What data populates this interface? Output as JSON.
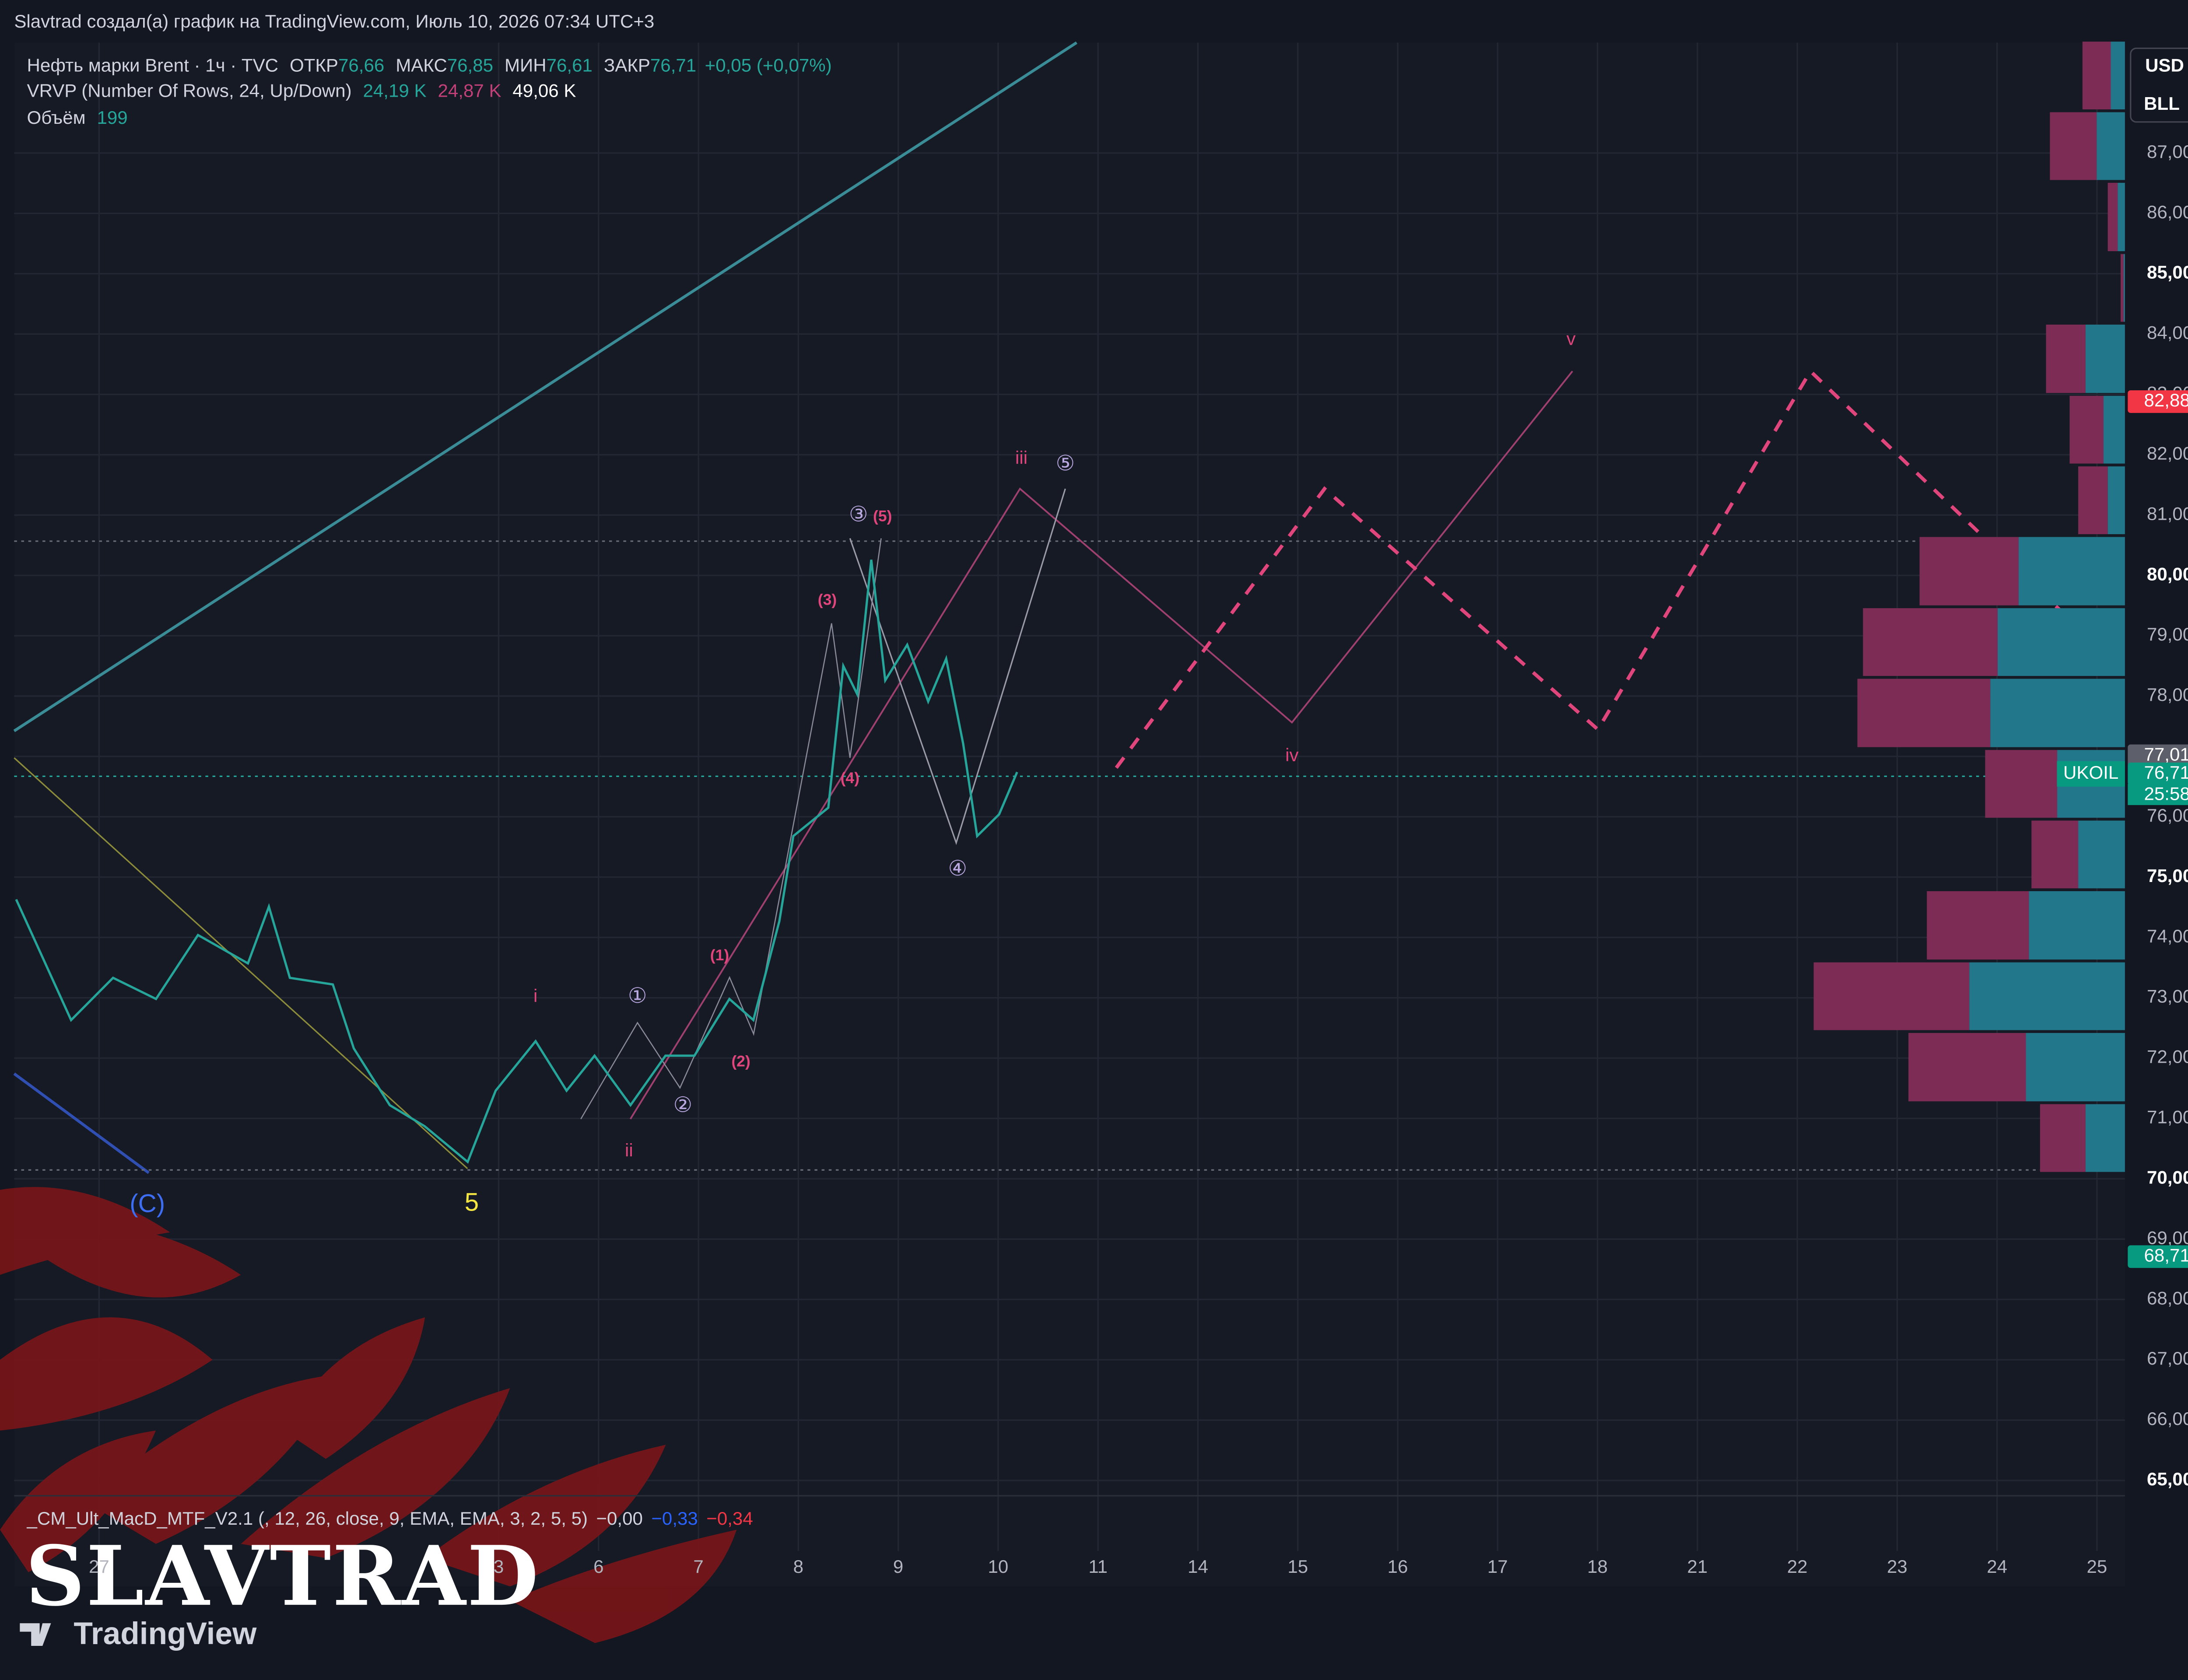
{
  "chart_data": {
    "type": "line",
    "header": "Slavtrad создал(а) график на TradingView.com, Июль 10, 2026 07:34 UTC+3",
    "legend": {
      "symbol": "Нефть марки Brent · 1ч · TVC",
      "open_label": "ОТКР",
      "open": "76,66",
      "high_label": "МАКС",
      "high": "76,85",
      "low_label": "МИН",
      "low": "76,61",
      "close_label": "ЗАКР",
      "close": "76,71",
      "change": "+0,05 (+0,07%)",
      "vrvp": "VRVP (Number Of Rows, 24, Up/Down)",
      "vrvp_up": "24,19 K",
      "vrvp_down": "24,87 K",
      "vrvp_total": "49,06 K",
      "volume_label": "Объём",
      "volume": "199",
      "macd": "_CM_Ult_MacD_MTF_V2.1 (, 12, 26, close, 9, EMA, EMA, 3, 2, 5, 5)",
      "macd_1": "−0,00",
      "macd_2": "−0,33",
      "macd_3": "−0,34"
    },
    "currency": "USD",
    "unit": "BLL",
    "watermark": "SLAVTRAD",
    "brand": "TradingView",
    "x": [
      -0.83,
      -0.28,
      0.14,
      0.57,
      0.99,
      1.49,
      1.7,
      1.91,
      2.34,
      2.55,
      2.91,
      3.26,
      3.69,
      3.97,
      4.37,
      4.68,
      4.96,
      5.32,
      5.67,
      5.96,
      6.31,
      6.55,
      6.81,
      6.95,
      7.3,
      7.45,
      7.59,
      7.73,
      7.87,
      8.09,
      8.3,
      8.48,
      8.65,
      8.79,
      9.01,
      9.19
    ],
    "series": [
      {
        "name": "UKOIL",
        "color": "#26a69a",
        "values": [
          74.63,
          72.63,
          73.33,
          72.98,
          74.04,
          73.57,
          74.51,
          73.33,
          73.22,
          72.16,
          71.22,
          70.87,
          70.28,
          71.46,
          72.28,
          71.46,
          72.04,
          71.22,
          72.04,
          72.04,
          72.98,
          72.63,
          74.27,
          75.68,
          76.15,
          78.5,
          78.03,
          80.26,
          78.26,
          78.85,
          77.91,
          78.62,
          77.21,
          75.68,
          76.04,
          76.74
        ]
      }
    ],
    "xlim": [
      -0.85,
      20.28
    ],
    "xticks": [
      {
        "value": 0,
        "label": "27"
      },
      {
        "value": 4,
        "label": "3"
      },
      {
        "value": 5,
        "label": "6"
      },
      {
        "value": 6,
        "label": "7"
      },
      {
        "value": 7,
        "label": "8"
      },
      {
        "value": 8,
        "label": "9"
      },
      {
        "value": 9,
        "label": "10"
      },
      {
        "value": 10,
        "label": "11"
      },
      {
        "value": 11,
        "label": "14"
      },
      {
        "value": 12,
        "label": "15"
      },
      {
        "value": 13,
        "label": "16"
      },
      {
        "value": 14,
        "label": "17"
      },
      {
        "value": 15,
        "label": "18"
      },
      {
        "value": 16,
        "label": "21"
      },
      {
        "value": 17,
        "label": "22"
      },
      {
        "value": 18,
        "label": "23"
      },
      {
        "value": 19,
        "label": "24"
      },
      {
        "value": 20,
        "label": "25"
      }
    ],
    "ylim": [
      64.77,
      88.83
    ],
    "yticks": [
      {
        "value": 65,
        "label": "65,00"
      },
      {
        "value": 66,
        "label": "66,00"
      },
      {
        "value": 67,
        "label": "67,00"
      },
      {
        "value": 68,
        "label": "68,00"
      },
      {
        "value": 69,
        "label": "69,00"
      },
      {
        "value": 70,
        "label": "70,00"
      },
      {
        "value": 71,
        "label": "71,00"
      },
      {
        "value": 72,
        "label": "72,00"
      },
      {
        "value": 73,
        "label": "73,00"
      },
      {
        "value": 74,
        "label": "74,00"
      },
      {
        "value": 75,
        "label": "75,00"
      },
      {
        "value": 76,
        "label": "76,00"
      },
      {
        "value": 77,
        "label": "77,00"
      },
      {
        "value": 78,
        "label": "78,00"
      },
      {
        "value": 79,
        "label": "79,00"
      },
      {
        "value": 80,
        "label": "80,00"
      },
      {
        "value": 81,
        "label": "81,00"
      },
      {
        "value": 82,
        "label": "82,00"
      },
      {
        "value": 83,
        "label": "83,00"
      },
      {
        "value": 84,
        "label": "84,00"
      },
      {
        "value": 85,
        "label": "85,00"
      },
      {
        "value": 86,
        "label": "86,00"
      },
      {
        "value": 87,
        "label": "87,00"
      }
    ],
    "grid": true,
    "price_tags": [
      {
        "value": 82.88,
        "label": "82,88",
        "color": "#f23645"
      },
      {
        "value": 77.01,
        "label": "77,01",
        "color": "#5d606b"
      },
      {
        "value": 76.71,
        "label": "76,71",
        "color": "#089981"
      },
      {
        "value": 68.71,
        "label": "68,71",
        "color": "#089981"
      }
    ],
    "symbol_tag": "UKOIL",
    "countdown": "25:58",
    "volume_profile": {
      "bins": [
        70.09,
        71.26,
        72.44,
        73.61,
        74.79,
        75.96,
        77.13,
        78.31,
        79.48,
        80.66,
        81.83,
        83.0,
        84.18,
        85.35,
        86.53,
        87.7,
        88.87
      ],
      "up": [
        0.92,
        2.31,
        3.63,
        2.24,
        1.09,
        1.58,
        3.14,
        2.97,
        2.48,
        0.4,
        0.5,
        0.92,
        0.03,
        0.17,
        0.66,
        0.33
      ],
      "down": [
        1.06,
        2.74,
        3.63,
        2.38,
        1.09,
        1.68,
        3.1,
        3.14,
        2.31,
        0.69,
        0.79,
        0.92,
        0.07,
        0.23,
        1.09,
        0.66
      ],
      "up_color": "#22788a",
      "down_color": "#7d2d55",
      "xlim": [
        0,
        7.6
      ]
    },
    "wave_labels": {
      "c": "(C)",
      "five": "5",
      "i": "i",
      "ii": "ii",
      "iii": "iii",
      "iv": "iv",
      "v": "v",
      "c1": "①",
      "c2": "②",
      "c3": "③",
      "c4": "④",
      "c5": "⑤",
      "p1": "(1)",
      "p2": "(2)",
      "p3": "(3)",
      "p4": "(4)",
      "p5": "(5)"
    }
  }
}
